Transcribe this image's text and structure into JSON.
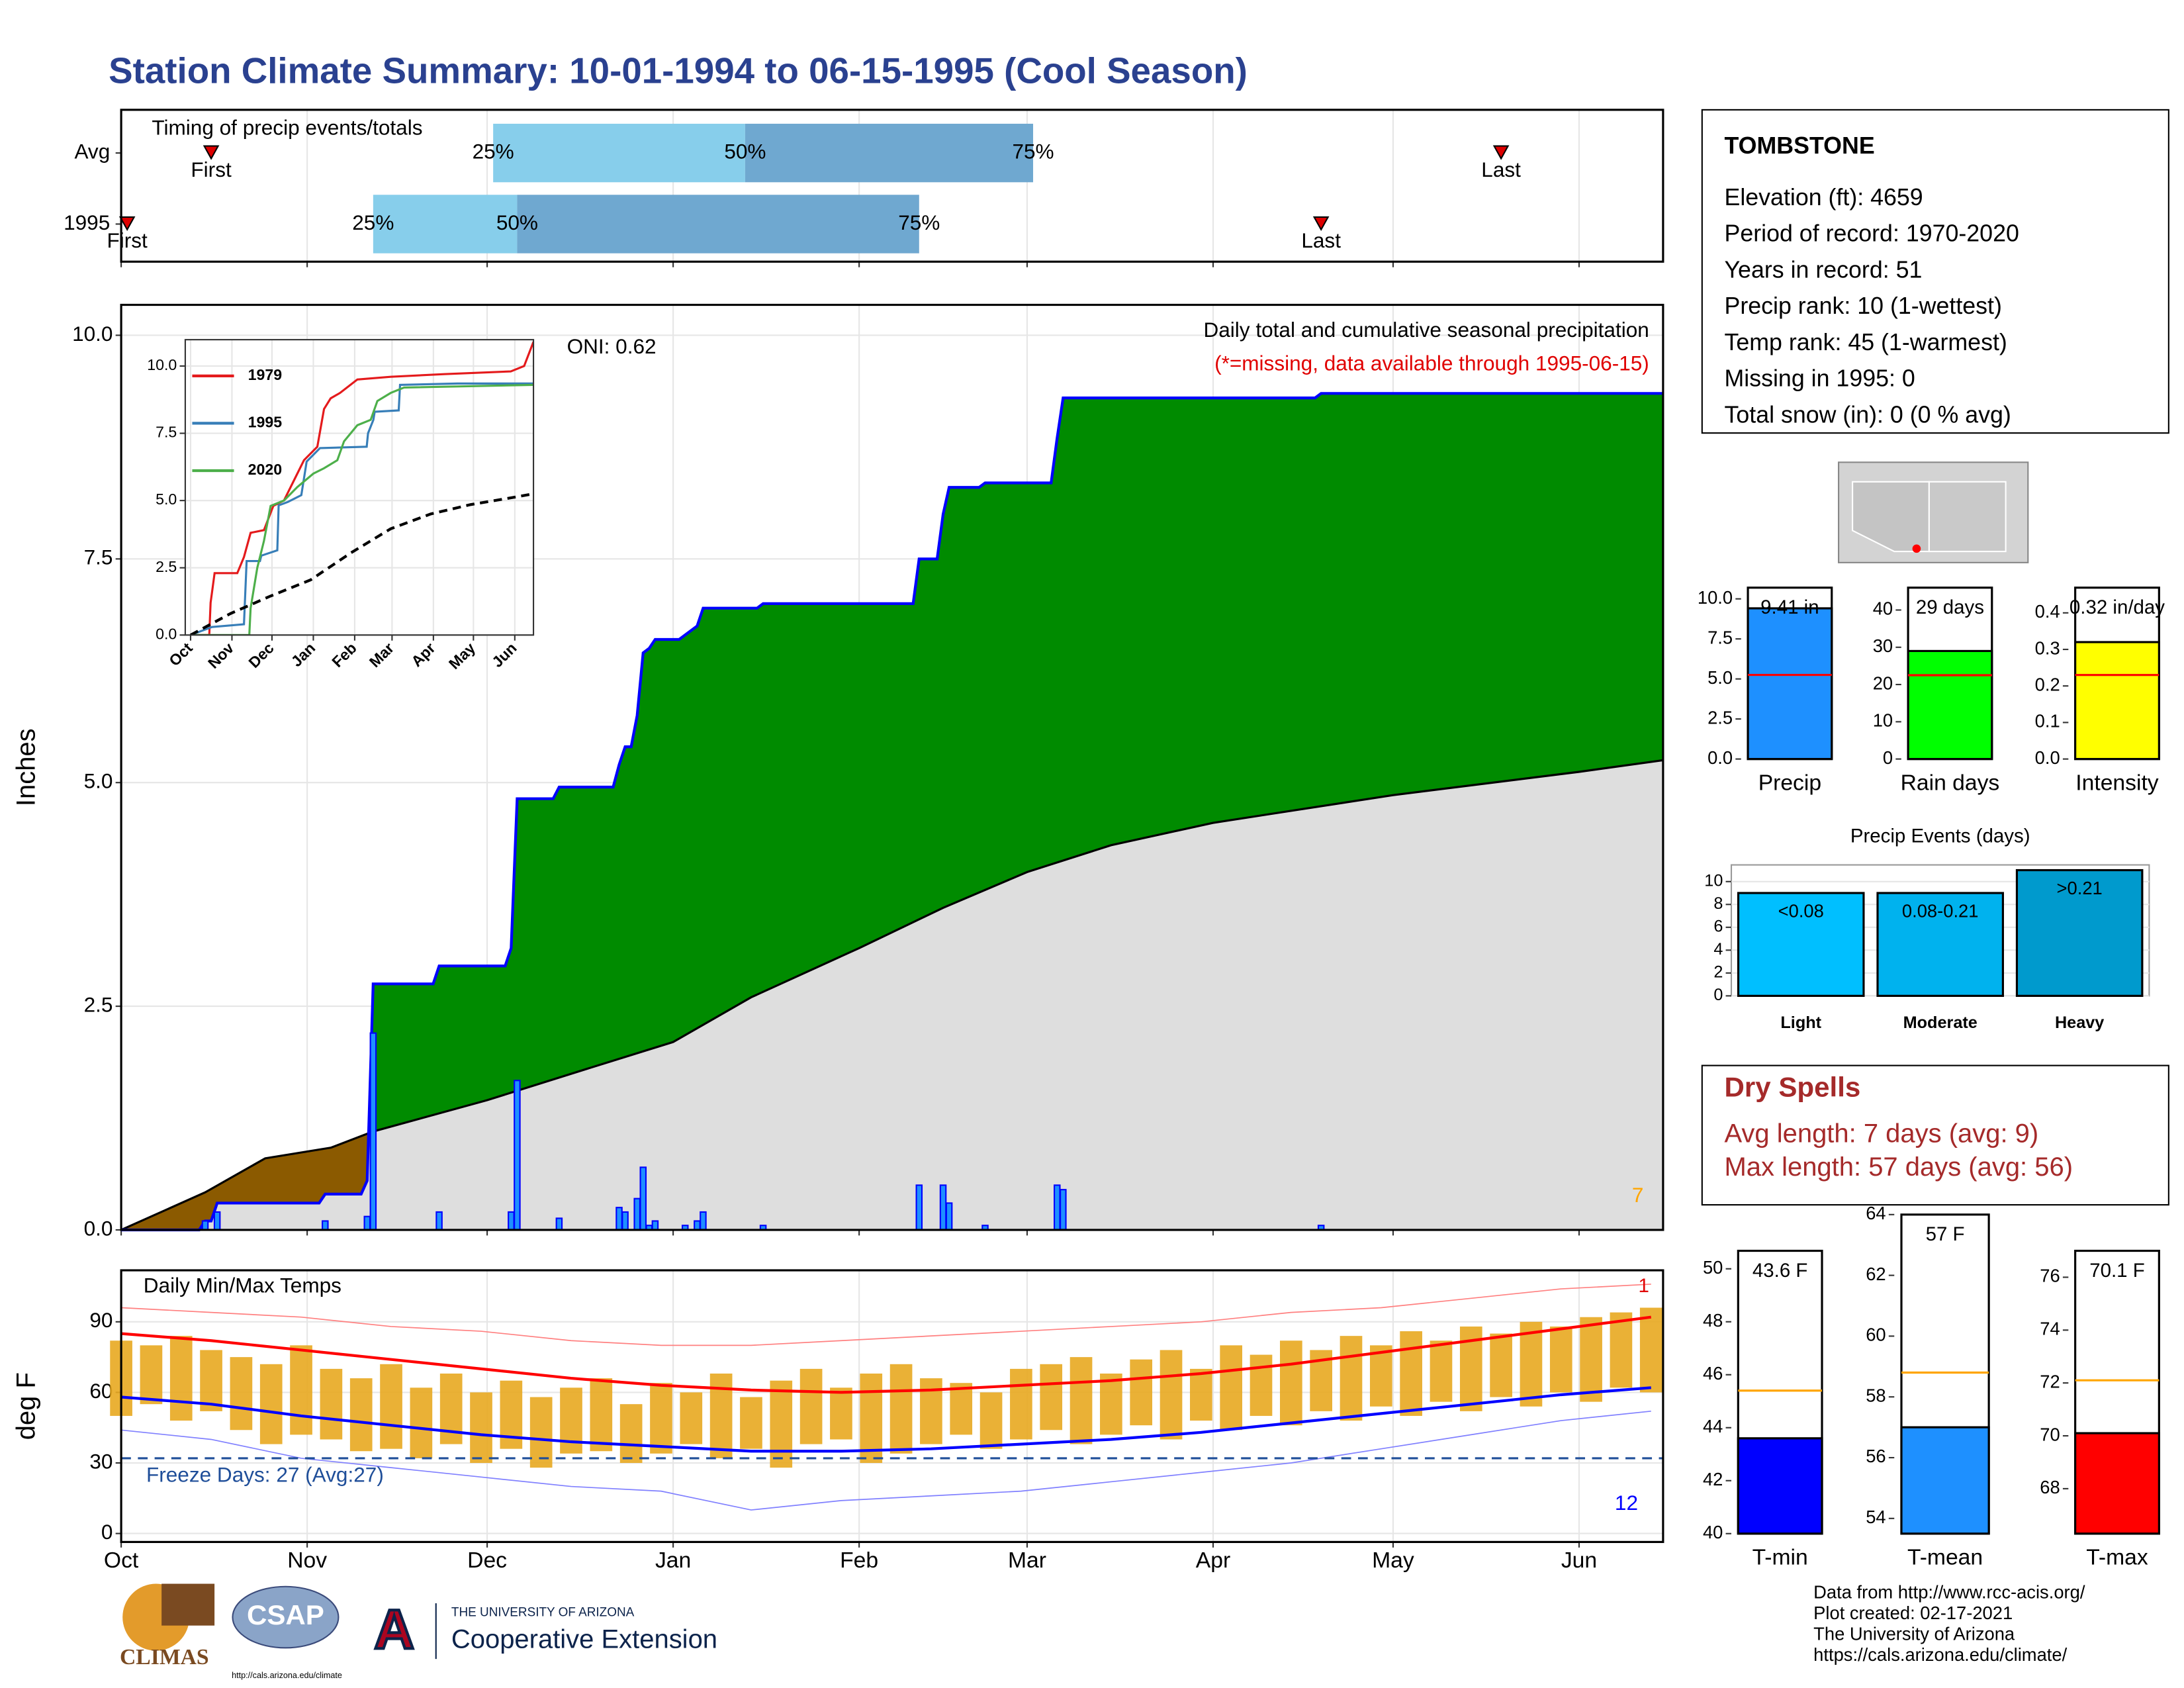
{
  "title": "Station Climate Summary: 10-01-1994 to 06-15-1995 (Cool Season)",
  "station": {
    "name": "TOMBSTONE",
    "lines": [
      "Elevation (ft): 4659",
      "Period of record: 1970-2020",
      "Years in record: 51",
      "Precip rank: 10 (1-wettest)",
      "Temp rank: 45 (1-warmest)",
      "Missing in 1995: 0",
      "Total snow (in): 0 (0 % avg)"
    ]
  },
  "dry_spells": {
    "title": "Dry Spells",
    "lines": [
      "Avg length: 7 days (avg: 9)",
      "Max length: 57 days (avg: 56)"
    ]
  },
  "footer": {
    "lines": [
      "Data from http://www.rcc-acis.org/",
      "Plot created: 02-17-2021",
      "The University of Arizona",
      "https://cals.arizona.edu/climate/"
    ]
  },
  "logos": {
    "climas": "CLIMAS",
    "csap": "CSAP",
    "csap_url": "http://cals.arizona.edu/climate",
    "ua_letter": "A",
    "ua_name": "THE UNIVERSITY OF ARIZONA",
    "ua_unit": "Cooperative Extension"
  },
  "chart_data": [
    {
      "type": "timing",
      "title": "Timing of precip events/totals",
      "categories": [
        "Avg",
        "1995"
      ],
      "markers": [
        "First",
        "25%",
        "50%",
        "75%",
        "Last"
      ],
      "values": [
        [
          15,
          62,
          104,
          152,
          230
        ],
        [
          1,
          42,
          66,
          133,
          200
        ]
      ],
      "colors": [
        "#87ceeb",
        "#6fa8d0"
      ],
      "marker_color": "#dd0000",
      "xlim": [
        0,
        257
      ],
      "xticks": [
        0,
        31,
        61,
        92,
        123,
        151,
        182,
        212,
        243
      ],
      "grid": true
    },
    {
      "type": "precip",
      "title": "Daily total and cumulative seasonal precipitation",
      "subtitle": "(*=missing, data available through 1995-06-15)",
      "annotations": [
        "ONI: 0.62",
        "7"
      ],
      "y_label": "Inches",
      "xlim": [
        0,
        257
      ],
      "xticks": [
        0,
        31,
        61,
        92,
        123,
        151,
        182,
        212,
        243
      ],
      "ylim": [
        0,
        10.34
      ],
      "yticks": [
        {
          "value": 0,
          "label": "0.0"
        },
        {
          "value": 2.5,
          "label": "2.5"
        },
        {
          "value": 5,
          "label": "5.0"
        },
        {
          "value": 7.5,
          "label": "7.5"
        },
        {
          "value": 10,
          "label": "10.0"
        }
      ],
      "grid": true,
      "above_color": "#008b00",
      "below_color": "#8b5a00",
      "series": [
        {
          "color": "#0000ff",
          "x": [
            0,
            13,
            14,
            15,
            16,
            33,
            34,
            40,
            41,
            42,
            52,
            53,
            64,
            65,
            66,
            72,
            73,
            82,
            83,
            84,
            85,
            86,
            87,
            88,
            89,
            93,
            94,
            96,
            97,
            106,
            107,
            132,
            133,
            136,
            137,
            138,
            143,
            144,
            155,
            156,
            157,
            199,
            200,
            257
          ],
          "values": [
            0,
            0,
            0.1,
            0.1,
            0.3,
            0.3,
            0.4,
            0.4,
            0.55,
            2.75,
            2.75,
            2.95,
            2.95,
            3.15,
            4.82,
            4.82,
            4.95,
            4.95,
            5.2,
            5.4,
            5.4,
            5.75,
            6.45,
            6.5,
            6.6,
            6.6,
            6.65,
            6.75,
            6.95,
            6.95,
            7.0,
            7.0,
            7.5,
            7.5,
            8.0,
            8.3,
            8.3,
            8.35,
            8.35,
            8.85,
            9.3,
            9.3,
            9.35,
            9.35
          ]
        },
        {
          "color": "#000000",
          "fill": "#dedede",
          "x": [
            0,
            14,
            24,
            35,
            42,
            61,
            80,
            92,
            105,
            123,
            137,
            151,
            165,
            182,
            212,
            243,
            257
          ],
          "values": [
            0,
            0.42,
            0.8,
            0.92,
            1.1,
            1.45,
            1.85,
            2.1,
            2.6,
            3.15,
            3.6,
            4.0,
            4.3,
            4.55,
            4.86,
            5.12,
            5.25
          ]
        },
        {
          "color": "#0000ff",
          "fill": "#1e90ff",
          "x": [
            14,
            16,
            34,
            41,
            42,
            53,
            65,
            66,
            73,
            83,
            84,
            86,
            87,
            88,
            89,
            94,
            96,
            97,
            107,
            133,
            137,
            138,
            144,
            156,
            157,
            200
          ],
          "values": [
            0.1,
            0.2,
            0.1,
            0.15,
            2.2,
            0.2,
            0.2,
            1.67,
            0.13,
            0.25,
            0.2,
            0.35,
            0.7,
            0.05,
            0.1,
            0.05,
            0.1,
            0.2,
            0.05,
            0.5,
            0.5,
            0.3,
            0.05,
            0.5,
            0.45,
            0.05
          ]
        }
      ]
    },
    {
      "type": "line",
      "xlim": [
        -4,
        257
      ],
      "xticks": [
        {
          "value": 0,
          "label": "Oct"
        },
        {
          "value": 31,
          "label": "Nov"
        },
        {
          "value": 61,
          "label": "Dec"
        },
        {
          "value": 92,
          "label": "Jan"
        },
        {
          "value": 123,
          "label": "Feb"
        },
        {
          "value": 151,
          "label": "Mar"
        },
        {
          "value": 182,
          "label": "Apr"
        },
        {
          "value": 212,
          "label": "May"
        },
        {
          "value": 243,
          "label": "Jun"
        }
      ],
      "ylim": [
        0,
        10.98
      ],
      "yticks": [
        {
          "value": 0,
          "label": "0.0"
        },
        {
          "value": 2.5,
          "label": "2.5"
        },
        {
          "value": 5,
          "label": "5.0"
        },
        {
          "value": 7.5,
          "label": "7.5"
        },
        {
          "value": 10,
          "label": "10.0"
        }
      ],
      "grid": true,
      "series": [
        {
          "name": "1979",
          "color": "#e41a1c",
          "x": [
            0,
            14,
            15,
            18,
            35,
            40,
            45,
            55,
            62,
            70,
            78,
            85,
            95,
            100,
            105,
            112,
            125,
            150,
            190,
            240,
            250,
            257
          ],
          "values": [
            0,
            0,
            1.2,
            2.3,
            2.3,
            2.9,
            3.8,
            3.9,
            4.8,
            5.0,
            5.8,
            6.5,
            7.0,
            8.4,
            8.8,
            9.0,
            9.5,
            9.6,
            9.7,
            9.8,
            10.0,
            10.9
          ]
        },
        {
          "name": "1995",
          "color": "#377eb8",
          "x": [
            0,
            16,
            40,
            42,
            52,
            53,
            65,
            66,
            73,
            83,
            87,
            97,
            132,
            133,
            137,
            138,
            156,
            157,
            200,
            257
          ],
          "values": [
            0,
            0.3,
            0.4,
            2.75,
            2.75,
            2.95,
            3.15,
            4.82,
            4.95,
            5.2,
            6.45,
            6.95,
            7.0,
            7.5,
            8.0,
            8.3,
            8.35,
            9.3,
            9.35,
            9.35
          ]
        },
        {
          "name": "2020",
          "color": "#4daf4a",
          "x": [
            0,
            44,
            45,
            50,
            55,
            60,
            70,
            80,
            92,
            100,
            110,
            115,
            125,
            135,
            140,
            150,
            160,
            257
          ],
          "values": [
            0,
            0,
            1.0,
            2.5,
            3.5,
            4.8,
            5.0,
            5.5,
            6.0,
            6.2,
            6.5,
            7.2,
            7.8,
            8.0,
            8.7,
            9.0,
            9.2,
            9.3
          ]
        },
        {
          "color": "#000000",
          "dash": true,
          "x": [
            0,
            30,
            60,
            90,
            120,
            150,
            180,
            210,
            240,
            257
          ],
          "values": [
            0,
            0.8,
            1.45,
            2.05,
            3.05,
            3.95,
            4.5,
            4.85,
            5.1,
            5.25
          ]
        }
      ]
    },
    {
      "type": "temperature",
      "title": "Daily Min/Max Temps",
      "annotations": [
        "Freeze Days: 27 (Avg:27)",
        "12",
        "1"
      ],
      "y_label": "deg F",
      "freeze_line": 32,
      "xlim": [
        0,
        257
      ],
      "xticks": [
        {
          "value": 0,
          "label": "Oct"
        },
        {
          "value": 31,
          "label": "Nov"
        },
        {
          "value": 61,
          "label": "Dec"
        },
        {
          "value": 92,
          "label": "Jan"
        },
        {
          "value": 123,
          "label": "Feb"
        },
        {
          "value": 151,
          "label": "Mar"
        },
        {
          "value": 182,
          "label": "Apr"
        },
        {
          "value": 212,
          "label": "May"
        },
        {
          "value": 243,
          "label": "Jun"
        }
      ],
      "ylim": [
        -3.6,
        111.9
      ],
      "yticks": [
        0,
        30,
        60,
        90
      ],
      "grid": true,
      "bars": {
        "color": "#e8a820",
        "x": [
          0,
          5,
          10,
          15,
          20,
          25,
          30,
          35,
          40,
          45,
          50,
          55,
          60,
          65,
          70,
          75,
          80,
          85,
          90,
          95,
          100,
          105,
          110,
          115,
          120,
          125,
          130,
          135,
          140,
          145,
          150,
          155,
          160,
          165,
          170,
          175,
          180,
          185,
          190,
          195,
          200,
          205,
          210,
          215,
          220,
          225,
          230,
          235,
          240,
          245,
          250,
          255
        ],
        "high": [
          82,
          80,
          84,
          78,
          75,
          72,
          80,
          70,
          66,
          72,
          62,
          68,
          60,
          65,
          58,
          62,
          66,
          55,
          64,
          60,
          68,
          58,
          65,
          70,
          62,
          68,
          72,
          66,
          64,
          60,
          70,
          72,
          75,
          68,
          74,
          78,
          70,
          80,
          76,
          82,
          78,
          84,
          80,
          86,
          82,
          88,
          85,
          90,
          88,
          92,
          94,
          96
        ],
        "low": [
          50,
          55,
          48,
          52,
          44,
          38,
          42,
          40,
          35,
          36,
          32,
          38,
          30,
          36,
          28,
          34,
          35,
          30,
          34,
          38,
          32,
          36,
          28,
          38,
          40,
          30,
          34,
          38,
          42,
          36,
          40,
          44,
          38,
          42,
          46,
          40,
          48,
          44,
          50,
          46,
          52,
          48,
          54,
          50,
          56,
          52,
          58,
          54,
          60,
          56,
          62,
          60
        ]
      },
      "series": [
        {
          "color": "#ff8080",
          "width": 0.8,
          "x": [
            0,
            15,
            30,
            45,
            60,
            75,
            90,
            105,
            120,
            135,
            150,
            165,
            180,
            195,
            210,
            225,
            240,
            255
          ],
          "values": [
            96,
            94,
            92,
            88,
            86,
            82,
            80,
            80,
            82,
            84,
            86,
            88,
            90,
            94,
            96,
            100,
            104,
            106
          ]
        },
        {
          "color": "#8080ff",
          "width": 0.8,
          "x": [
            0,
            15,
            30,
            45,
            60,
            75,
            90,
            105,
            120,
            135,
            150,
            165,
            180,
            195,
            210,
            225,
            240,
            255
          ],
          "values": [
            44,
            40,
            32,
            28,
            24,
            20,
            18,
            10,
            14,
            16,
            18,
            22,
            26,
            30,
            36,
            42,
            48,
            52
          ]
        },
        {
          "color": "#ff0000",
          "width": 2,
          "x": [
            0,
            15,
            30,
            45,
            60,
            75,
            90,
            105,
            120,
            135,
            150,
            165,
            180,
            195,
            210,
            225,
            240,
            255
          ],
          "values": [
            85,
            82,
            78,
            74,
            70,
            66,
            63,
            61,
            60,
            61,
            63,
            65,
            68,
            72,
            77,
            82,
            87,
            92
          ]
        },
        {
          "color": "#0000ff",
          "width": 2,
          "x": [
            0,
            15,
            30,
            45,
            60,
            75,
            90,
            105,
            120,
            135,
            150,
            165,
            180,
            195,
            210,
            225,
            240,
            255
          ],
          "values": [
            58,
            55,
            50,
            46,
            42,
            39,
            37,
            35,
            35,
            36,
            38,
            40,
            43,
            47,
            51,
            55,
            59,
            62
          ]
        }
      ]
    },
    {
      "type": "bar",
      "categories": [
        "Precip"
      ],
      "values": [
        9.41
      ],
      "value_labels": [
        "9.41 in"
      ],
      "average": 5.25,
      "color": "#1e90ff",
      "average_color": "#ff0000",
      "ylim": [
        0,
        10.7
      ],
      "yticks": [
        {
          "value": 0,
          "label": "0.0"
        },
        {
          "value": 2.5,
          "label": "2.5"
        },
        {
          "value": 5,
          "label": "5.0"
        },
        {
          "value": 7.5,
          "label": "7.5"
        },
        {
          "value": 10,
          "label": "10.0"
        }
      ]
    },
    {
      "type": "bar",
      "categories": [
        "Rain days"
      ],
      "values": [
        29
      ],
      "value_labels": [
        "29 days"
      ],
      "average": 22.5,
      "color": "#00ff00",
      "average_color": "#ff0000",
      "ylim": [
        0,
        46
      ],
      "yticks": [
        0,
        10,
        20,
        30,
        40
      ]
    },
    {
      "type": "bar",
      "categories": [
        "Intensity"
      ],
      "values": [
        0.32
      ],
      "value_labels": [
        "0.32 in/day"
      ],
      "average": 0.23,
      "color": "#ffff00",
      "average_color": "#ff0000",
      "ylim": [
        0,
        0.469
      ],
      "yticks": [
        {
          "value": 0,
          "label": "0.0"
        },
        0.1,
        0.2,
        0.3,
        0.4
      ]
    },
    {
      "type": "bar",
      "title": "Precip Events (days)",
      "categories": [
        "Light",
        "Moderate",
        "Heavy"
      ],
      "values": [
        9,
        9,
        11
      ],
      "value_labels": [
        "<0.08",
        "0.08-0.21",
        ">0.21"
      ],
      "colors": [
        "#00bfff",
        "#00b2ee",
        "#009acd"
      ],
      "ylim": [
        0,
        11.46
      ],
      "yticks": [
        0,
        2,
        4,
        6,
        8,
        10
      ],
      "grid": true
    },
    {
      "type": "bar",
      "categories": [
        "T-min"
      ],
      "values": [
        43.6
      ],
      "value_labels": [
        "43.6 F"
      ],
      "average": 45.4,
      "color": "#0000ff",
      "average_color": "#ffa500",
      "ylim": [
        40,
        50.68
      ],
      "yticks": [
        40,
        42,
        44,
        46,
        48,
        50
      ]
    },
    {
      "type": "bar",
      "categories": [
        "T-mean"
      ],
      "values": [
        57
      ],
      "value_labels": [
        "57 F"
      ],
      "average": 58.8,
      "color": "#1e90ff",
      "average_color": "#ffa500",
      "ylim": [
        53.5,
        64
      ],
      "yticks": [
        54,
        56,
        58,
        60,
        62,
        64
      ]
    },
    {
      "type": "bar",
      "categories": [
        "T-max"
      ],
      "values": [
        70.1
      ],
      "value_labels": [
        "70.1 F"
      ],
      "average": 72.1,
      "color": "#ff0000",
      "average_color": "#ffa500",
      "ylim": [
        66.3,
        77
      ],
      "yticks": [
        68,
        70,
        72,
        74,
        76
      ]
    }
  ]
}
